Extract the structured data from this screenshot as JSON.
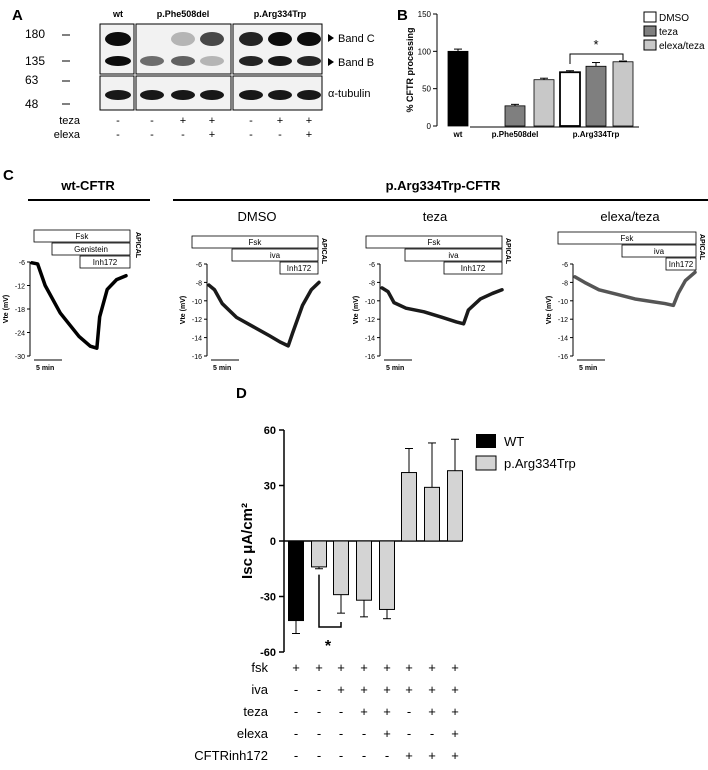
{
  "panels": {
    "A": "A",
    "B": "B",
    "C": "C",
    "D": "D"
  },
  "blot": {
    "lane_groups": [
      "wt",
      "p.Phe508del",
      "p.Arg334Trp"
    ],
    "mw_markers": [
      "180",
      "135",
      "63",
      "48"
    ],
    "band_labels": [
      "Band C",
      "Band B"
    ],
    "loading_label": "α-tubulin",
    "treatments": [
      {
        "name": "teza",
        "signs": [
          "-",
          "-",
          "+",
          "+",
          "-",
          "+",
          "+"
        ]
      },
      {
        "name": "elexa",
        "signs": [
          "-",
          "-",
          "-",
          "+",
          "-",
          "-",
          "+"
        ]
      }
    ],
    "bands": [
      {
        "lane": 0,
        "c": 0.95,
        "b": 0.95
      },
      {
        "lane": 1,
        "c": 0.0,
        "b": 0.55
      },
      {
        "lane": 2,
        "c": 0.25,
        "b": 0.6
      },
      {
        "lane": 3,
        "c": 0.7,
        "b": 0.25
      },
      {
        "lane": 4,
        "c": 0.85,
        "b": 0.85
      },
      {
        "lane": 5,
        "c": 0.95,
        "b": 0.9
      },
      {
        "lane": 6,
        "c": 0.95,
        "b": 0.85
      }
    ]
  },
  "chart_data": [
    {
      "panel": "B",
      "type": "bar",
      "ylabel": "% CFTR processing",
      "ylim": [
        0,
        150
      ],
      "yticks": [
        0,
        50,
        100,
        150
      ],
      "groups": [
        {
          "label": "wt",
          "bars": [
            {
              "series": "wt",
              "value": 100,
              "err": 3
            }
          ]
        },
        {
          "label": "p.Phe508del",
          "bars": [
            {
              "series": "DMSO",
              "value": 0,
              "err": 0
            },
            {
              "series": "teza",
              "value": 27,
              "err": 2
            },
            {
              "series": "elexa/teza",
              "value": 62,
              "err": 2
            }
          ]
        },
        {
          "label": "p.Arg334Trp",
          "bars": [
            {
              "series": "DMSO",
              "value": 72,
              "err": 2
            },
            {
              "series": "teza",
              "value": 80,
              "err": 5
            },
            {
              "series": "elexa/teza",
              "value": 86,
              "err": 1
            }
          ]
        }
      ],
      "legend": [
        "DMSO",
        "teza",
        "elexa/teza"
      ],
      "legend_position": "top-right",
      "colors": {
        "wt": "#000000",
        "DMSO": "#ffffff",
        "teza": "#7f7f7f",
        "elexa/teza": "#c8c8c8"
      },
      "significance": "*"
    },
    {
      "panel": "C",
      "type": "line",
      "header_left": "wt-CFTR",
      "header_right": "p.Arg334Trp-CFTR",
      "ylabel": "Vte (mV)",
      "scalebar": "5 min",
      "side_label": "APICAL",
      "traces": [
        {
          "title": "",
          "drugs": [
            "Fsk",
            "Genistein",
            "Inh172"
          ],
          "ylim": [
            -30,
            -6
          ],
          "yticks": [
            -6,
            -12,
            -18,
            -24,
            -30
          ],
          "x": [
            0,
            0.06,
            0.14,
            0.3,
            0.5,
            0.62,
            0.69,
            0.72,
            0.8,
            0.9,
            1.0
          ],
          "y": [
            -6.2,
            -6.5,
            -12,
            -19,
            -25,
            -27.5,
            -28,
            -20,
            -13,
            -10.5,
            -9.5
          ]
        },
        {
          "title": "DMSO",
          "drugs": [
            "Fsk",
            "iva",
            "Inh172"
          ],
          "ylim": [
            -16,
            -6
          ],
          "yticks": [
            -6,
            -8,
            -10,
            -12,
            -14,
            -16
          ],
          "x": [
            0,
            0.05,
            0.12,
            0.25,
            0.4,
            0.55,
            0.65,
            0.72,
            0.76,
            0.85,
            0.93,
            1.0
          ],
          "y": [
            -8.3,
            -8.8,
            -10.3,
            -11.8,
            -12.8,
            -13.8,
            -14.5,
            -14.9,
            -13.5,
            -10.5,
            -8.8,
            -8.0
          ]
        },
        {
          "title": "teza",
          "drugs": [
            "Fsk",
            "iva",
            "Inh172"
          ],
          "ylim": [
            -16,
            -6
          ],
          "yticks": [
            -6,
            -8,
            -10,
            -12,
            -14,
            -16
          ],
          "x": [
            0,
            0.05,
            0.1,
            0.2,
            0.35,
            0.5,
            0.62,
            0.68,
            0.72,
            0.82,
            0.92,
            1.0
          ],
          "y": [
            -8.6,
            -9.0,
            -10.2,
            -10.8,
            -11.2,
            -11.8,
            -12.3,
            -12.5,
            -11.0,
            -9.8,
            -9.2,
            -8.8
          ]
        },
        {
          "title": "elexa/teza",
          "drugs": [
            "Fsk",
            "iva",
            "Inh172"
          ],
          "ylim": [
            -16,
            -6
          ],
          "yticks": [
            -6,
            -8,
            -10,
            -12,
            -14,
            -16
          ],
          "x": [
            0,
            0.08,
            0.2,
            0.35,
            0.5,
            0.65,
            0.75,
            0.82,
            0.86,
            0.92,
            1.0
          ],
          "y": [
            -7.4,
            -8.0,
            -8.8,
            -9.3,
            -9.8,
            -10.1,
            -10.3,
            -10.5,
            -9.2,
            -7.8,
            -6.9
          ]
        }
      ]
    },
    {
      "panel": "D",
      "type": "bar",
      "ylabel": "Isc μA/cm²",
      "ylim": [
        -60,
        60
      ],
      "yticks": [
        -60,
        -30,
        0,
        30,
        60
      ],
      "legend": [
        {
          "name": "WT",
          "color": "#000000"
        },
        {
          "name": "p.Arg334Trp",
          "color": "#d4d4d4"
        }
      ],
      "legend_position": "top-right",
      "bars": [
        {
          "series": "WT",
          "value": -43,
          "err": 7
        },
        {
          "series": "p.Arg334Trp",
          "value": -14,
          "err": 1
        },
        {
          "series": "p.Arg334Trp",
          "value": -29,
          "err": 10
        },
        {
          "series": "p.Arg334Trp",
          "value": -32,
          "err": 9
        },
        {
          "series": "p.Arg334Trp",
          "value": -37,
          "err": 5
        },
        {
          "series": "p.Arg334Trp",
          "value": 37,
          "err": 13
        },
        {
          "series": "p.Arg334Trp",
          "value": 29,
          "err": 24
        },
        {
          "series": "p.Arg334Trp",
          "value": 38,
          "err": 17
        }
      ],
      "conditions": [
        {
          "name": "fsk",
          "signs": [
            "+",
            "+",
            "+",
            "+",
            "+",
            "+",
            "+",
            "+"
          ]
        },
        {
          "name": "iva",
          "signs": [
            "-",
            "-",
            "+",
            "+",
            "+",
            "+",
            "+",
            "+"
          ]
        },
        {
          "name": "teza",
          "signs": [
            "-",
            "-",
            "-",
            "+",
            "+",
            "-",
            "+",
            "+"
          ]
        },
        {
          "name": "elexa",
          "signs": [
            "-",
            "-",
            "-",
            "-",
            "+",
            "-",
            "-",
            "+"
          ]
        },
        {
          "name": "CFTRinh172",
          "signs": [
            "-",
            "-",
            "-",
            "-",
            "-",
            "+",
            "+",
            "+"
          ]
        }
      ],
      "significance": "*"
    }
  ]
}
